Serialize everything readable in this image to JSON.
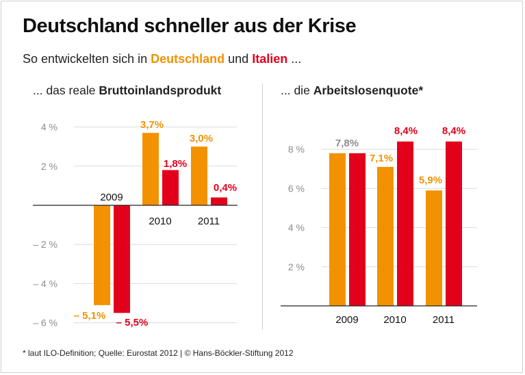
{
  "title": "Deutschland schneller aus der Krise",
  "subtitle": {
    "prefix": "So entwickelten sich in",
    "country1": "Deutschland",
    "connector": "und",
    "country2": "Italien",
    "suffix": "..."
  },
  "colors": {
    "germany": "#f39200",
    "italy": "#e3001b",
    "label_gray": "#8c8c8c",
    "gridline": "#dcdcdc",
    "axis": "#222222"
  },
  "chart_data": [
    {
      "type": "bar",
      "panel_title_prefix": "... das reale",
      "panel_title_bold": "Bruttoinlandsprodukt",
      "categories": [
        "2009",
        "2010",
        "2011"
      ],
      "series": [
        {
          "name": "Deutschland",
          "values": [
            -5.1,
            3.7,
            3.0
          ],
          "labels": [
            "– 5,1%",
            "3,7%",
            "3,0%"
          ]
        },
        {
          "name": "Italien",
          "values": [
            -5.5,
            1.8,
            0.4
          ],
          "labels": [
            "– 5,5%",
            "1,8%",
            "0,4%"
          ]
        }
      ],
      "ylim": [
        -6,
        4
      ],
      "yticks": [
        4,
        2,
        -2,
        -4,
        -6
      ],
      "ytick_labels": [
        "4 %",
        "2 %",
        "– 2 %",
        "– 4 %",
        "– 6 %"
      ],
      "xlabel": "",
      "ylabel": "",
      "grid": true
    },
    {
      "type": "bar",
      "panel_title_prefix": "... die",
      "panel_title_bold": "Arbeitslosenquote*",
      "categories": [
        "2009",
        "2010",
        "2011"
      ],
      "series": [
        {
          "name": "Deutschland",
          "values": [
            7.8,
            7.1,
            5.9
          ],
          "labels": [
            "",
            "7,1%",
            "5,9%"
          ]
        },
        {
          "name": "Italien",
          "values": [
            7.8,
            8.4,
            8.4
          ],
          "labels": [
            "",
            "8,4%",
            "8,4%"
          ]
        }
      ],
      "shared_labels": [
        "7,8%",
        "",
        ""
      ],
      "ylim": [
        0,
        9
      ],
      "yticks": [
        8,
        6,
        4,
        2
      ],
      "ytick_labels": [
        "8 %",
        "6 %",
        "4 %",
        "2 %"
      ],
      "xlabel": "",
      "ylabel": "",
      "grid": true
    }
  ],
  "footer": "* laut ILO-Definition; Quelle: Eurostat 2012 | © Hans-Böckler-Stiftung 2012"
}
